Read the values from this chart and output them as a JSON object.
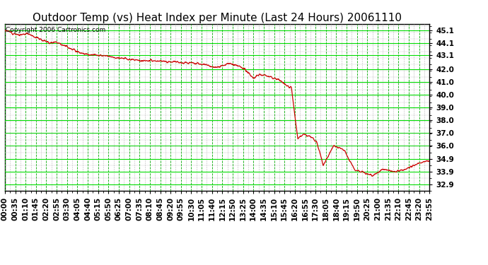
{
  "title": "Outdoor Temp (vs) Heat Index per Minute (Last 24 Hours) 20061110",
  "copyright_text": "Copyright 2006 Cartronics.com",
  "yticks": [
    32.9,
    33.9,
    34.9,
    36.0,
    37.0,
    38.0,
    39.0,
    40.0,
    41.0,
    42.0,
    43.1,
    44.1,
    45.1
  ],
  "ylim": [
    32.4,
    45.6
  ],
  "xtick_labels": [
    "00:00",
    "00:35",
    "01:10",
    "01:45",
    "02:20",
    "02:55",
    "03:30",
    "04:05",
    "04:40",
    "05:15",
    "05:50",
    "06:25",
    "07:00",
    "07:35",
    "08:10",
    "08:45",
    "09:20",
    "09:55",
    "10:30",
    "11:05",
    "11:40",
    "12:15",
    "12:50",
    "13:25",
    "14:00",
    "14:35",
    "15:10",
    "15:45",
    "16:20",
    "16:55",
    "17:30",
    "18:05",
    "18:40",
    "19:15",
    "19:50",
    "20:25",
    "21:00",
    "21:35",
    "22:10",
    "22:45",
    "23:20",
    "23:55"
  ],
  "line_color": "#cc0000",
  "background_color": "#ffffff",
  "grid_color_solid": "#00dd00",
  "grid_color_dashed": "#00aa00",
  "grid_color_minor": "#bbbbbb",
  "title_fontsize": 11,
  "tick_fontsize": 7.5,
  "copyright_fontsize": 6.5,
  "ctrl_x": [
    0,
    0.035,
    0.055,
    0.075,
    0.09,
    0.105,
    0.12,
    0.14,
    0.165,
    0.19,
    0.22,
    0.25,
    0.28,
    0.32,
    0.36,
    0.4,
    0.44,
    0.475,
    0.5,
    0.525,
    0.545,
    0.565,
    0.585,
    0.6,
    0.625,
    0.645,
    0.665,
    0.675,
    0.69,
    0.705,
    0.72,
    0.735,
    0.75,
    0.775,
    0.8,
    0.825,
    0.845,
    0.865,
    0.89,
    0.92,
    0.95,
    0.975,
    1.0
  ],
  "ctrl_y": [
    45.1,
    44.7,
    44.85,
    44.5,
    44.3,
    44.1,
    44.2,
    43.9,
    43.5,
    43.2,
    43.1,
    43.0,
    42.85,
    42.7,
    42.65,
    42.6,
    42.5,
    42.35,
    42.1,
    42.5,
    42.3,
    42.0,
    41.3,
    41.6,
    41.4,
    41.2,
    40.7,
    40.55,
    36.5,
    36.9,
    36.7,
    36.2,
    34.4,
    36.0,
    35.6,
    34.0,
    33.9,
    33.6,
    34.1,
    33.9,
    34.2,
    34.6,
    34.8
  ]
}
